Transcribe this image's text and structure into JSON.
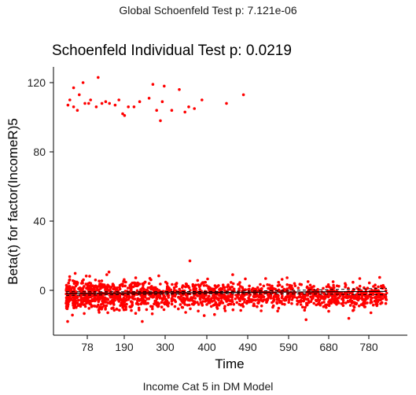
{
  "header": {
    "global_test": "Global Schoenfeld Test p: 7.121e-06"
  },
  "footer": {
    "caption": "Income Cat 5 in DM Model"
  },
  "chart_data": {
    "type": "scatter",
    "title": "Schoenfeld Individual Test p: 0.0219",
    "xlabel": "Time",
    "ylabel": "Beta(t) for factor(IncomeR)5",
    "x_tick_labels": [
      "78",
      "190",
      "300",
      "400",
      "490",
      "590",
      "680",
      "780"
    ],
    "y_ticks": [
      0,
      40,
      80,
      120
    ],
    "ylim": [
      -18,
      130
    ],
    "grid": false,
    "colors": {
      "points": "#ff0000",
      "smooth": "#000000",
      "band": "#000000"
    },
    "outlier_points": [
      {
        "x": 1,
        "y": 107
      },
      {
        "x": 2,
        "y": 110
      },
      {
        "x": 4,
        "y": 106
      },
      {
        "x": 4,
        "y": 117
      },
      {
        "x": 6,
        "y": 104
      },
      {
        "x": 7,
        "y": 113
      },
      {
        "x": 9,
        "y": 120
      },
      {
        "x": 10,
        "y": 108
      },
      {
        "x": 12,
        "y": 108
      },
      {
        "x": 13,
        "y": 110
      },
      {
        "x": 16,
        "y": 106
      },
      {
        "x": 17,
        "y": 123
      },
      {
        "x": 19,
        "y": 108
      },
      {
        "x": 21,
        "y": 109
      },
      {
        "x": 23,
        "y": 108
      },
      {
        "x": 26,
        "y": 107
      },
      {
        "x": 28,
        "y": 110
      },
      {
        "x": 30,
        "y": 102
      },
      {
        "x": 31,
        "y": 101
      },
      {
        "x": 33,
        "y": 106
      },
      {
        "x": 36,
        "y": 106
      },
      {
        "x": 39,
        "y": 109
      },
      {
        "x": 44,
        "y": 111
      },
      {
        "x": 46,
        "y": 119
      },
      {
        "x": 48,
        "y": 104
      },
      {
        "x": 50,
        "y": 98
      },
      {
        "x": 51,
        "y": 109
      },
      {
        "x": 52,
        "y": 118
      },
      {
        "x": 56,
        "y": 104
      },
      {
        "x": 60,
        "y": 116
      },
      {
        "x": 63,
        "y": 103
      },
      {
        "x": 65,
        "y": 106
      },
      {
        "x": 68,
        "y": 105
      },
      {
        "x": 72,
        "y": 110
      },
      {
        "x": 85,
        "y": 108
      },
      {
        "x": 94,
        "y": 113
      }
    ],
    "cluster": {
      "count": 1700,
      "x_range": [
        0,
        170
      ],
      "center": -3,
      "spread": 4.5,
      "min": -18,
      "max": 17
    },
    "smooth_line": [
      {
        "x": 0,
        "y": -1.8
      },
      {
        "x": 40,
        "y": -1.5
      },
      {
        "x": 85,
        "y": -1.2
      },
      {
        "x": 130,
        "y": -0.9
      },
      {
        "x": 170,
        "y": -0.6
      }
    ],
    "band_upper": [
      {
        "x": 0,
        "y": -0.8
      },
      {
        "x": 40,
        "y": -0.8
      },
      {
        "x": 85,
        "y": -0.6
      },
      {
        "x": 130,
        "y": 0.2
      },
      {
        "x": 170,
        "y": 1.2
      }
    ],
    "band_lower": [
      {
        "x": 0,
        "y": -2.9
      },
      {
        "x": 40,
        "y": -2.3
      },
      {
        "x": 85,
        "y": -1.9
      },
      {
        "x": 130,
        "y": -2.1
      },
      {
        "x": 170,
        "y": -2.6
      }
    ]
  }
}
